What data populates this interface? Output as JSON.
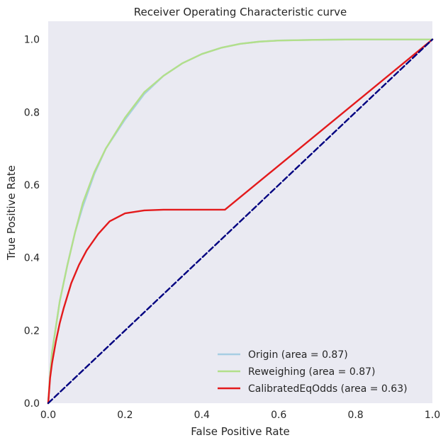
{
  "chart_data": {
    "type": "line",
    "title": "Receiver Operating Characteristic curve",
    "xlabel": "False Positive Rate",
    "ylabel": "True Positive Rate",
    "xlim": [
      0.0,
      1.0
    ],
    "ylim": [
      0.0,
      1.05
    ],
    "grid": false,
    "background": "#eaeaf2",
    "legend_position": "lower-right",
    "x_ticks": [
      0.0,
      0.2,
      0.4,
      0.6,
      0.8,
      1.0
    ],
    "y_ticks": [
      0.0,
      0.2,
      0.4,
      0.6,
      0.8,
      1.0
    ],
    "x_tick_labels": [
      "0.0",
      "0.2",
      "0.4",
      "0.6",
      "0.8",
      "1.0"
    ],
    "y_tick_labels": [
      "0.0",
      "0.2",
      "0.4",
      "0.6",
      "0.8",
      "1.0"
    ],
    "series": [
      {
        "name": "Origin (area = 0.87)",
        "color": "#a6cee3",
        "x": [
          0.0,
          0.005,
          0.01,
          0.02,
          0.03,
          0.05,
          0.07,
          0.09,
          0.12,
          0.15,
          0.2,
          0.25,
          0.3,
          0.35,
          0.4,
          0.45,
          0.5,
          0.55,
          0.6,
          0.7,
          0.8,
          0.9,
          1.0
        ],
        "y": [
          0.0,
          0.08,
          0.14,
          0.21,
          0.28,
          0.38,
          0.47,
          0.54,
          0.63,
          0.7,
          0.78,
          0.85,
          0.9,
          0.935,
          0.96,
          0.977,
          0.988,
          0.994,
          0.997,
          0.999,
          1.0,
          1.0,
          1.0
        ]
      },
      {
        "name": "Reweighing (area = 0.87)",
        "color": "#b2df8a",
        "x": [
          0.0,
          0.005,
          0.01,
          0.02,
          0.03,
          0.05,
          0.07,
          0.09,
          0.12,
          0.15,
          0.2,
          0.25,
          0.3,
          0.35,
          0.4,
          0.45,
          0.5,
          0.55,
          0.6,
          0.7,
          0.8,
          0.9,
          1.0
        ],
        "y": [
          0.0,
          0.08,
          0.14,
          0.21,
          0.28,
          0.38,
          0.47,
          0.55,
          0.635,
          0.7,
          0.785,
          0.855,
          0.9,
          0.935,
          0.96,
          0.977,
          0.988,
          0.994,
          0.997,
          0.999,
          1.0,
          1.0,
          1.0
        ]
      },
      {
        "name": "CalibratedEqOdds (area = 0.63)",
        "color": "#e31a1c",
        "x": [
          0.0,
          0.005,
          0.01,
          0.02,
          0.03,
          0.04,
          0.06,
          0.08,
          0.1,
          0.13,
          0.16,
          0.2,
          0.25,
          0.3,
          0.35,
          0.4,
          0.46,
          1.0
        ],
        "y": [
          0.0,
          0.07,
          0.11,
          0.17,
          0.22,
          0.26,
          0.33,
          0.38,
          0.42,
          0.465,
          0.5,
          0.522,
          0.53,
          0.532,
          0.532,
          0.532,
          0.532,
          1.0
        ]
      },
      {
        "name": "",
        "color": "#000080",
        "dashed": true,
        "x": [
          0.0,
          1.0
        ],
        "y": [
          0.0,
          1.0
        ]
      }
    ]
  }
}
